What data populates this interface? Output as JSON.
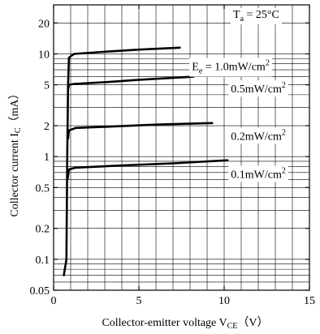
{
  "chart_data": {
    "type": "line",
    "title": "",
    "xlabel": "Collector-emitter voltage V",
    "xlabel_sub": "CE",
    "xlabel_unit": "（V）",
    "ylabel": "Collector current I",
    "ylabel_sub": "C",
    "ylabel_unit": "（mA）",
    "x_scale": "linear",
    "y_scale": "log",
    "xlim": [
      0,
      15
    ],
    "ylim": [
      0.05,
      30
    ],
    "x_ticks": [
      {
        "value": 0,
        "label": "0"
      },
      {
        "value": 5,
        "label": "5"
      },
      {
        "value": 10,
        "label": "10"
      },
      {
        "value": 15,
        "label": "15"
      }
    ],
    "y_ticks": [
      {
        "value": 0.05,
        "label": "0.05"
      },
      {
        "value": 0.1,
        "label": "0.1"
      },
      {
        "value": 0.2,
        "label": "0.2"
      },
      {
        "value": 0.5,
        "label": "0.5"
      },
      {
        "value": 1,
        "label": "1"
      },
      {
        "value": 2,
        "label": "2"
      },
      {
        "value": 5,
        "label": "5"
      },
      {
        "value": 10,
        "label": "10"
      },
      {
        "value": 20,
        "label": "20"
      }
    ],
    "grid": true,
    "annotation": {
      "text": "T",
      "sub": "a",
      "rest": " = 25°C",
      "placement": "top-right"
    },
    "series": [
      {
        "name": "1.0mW/cm2",
        "label_prefix": "E",
        "label_sub": "e",
        "label_mid": " = 1.0mW/cm",
        "label_sup": "2",
        "label_x": 10.3,
        "label_y": 7.6,
        "points": [
          [
            0.6,
            0.07
          ],
          [
            0.75,
            0.1
          ],
          [
            0.8,
            1
          ],
          [
            0.85,
            5
          ],
          [
            0.9,
            9.2
          ],
          [
            1.2,
            10
          ],
          [
            3,
            10.5
          ],
          [
            5,
            11
          ],
          [
            7.4,
            11.5
          ]
        ]
      },
      {
        "name": "0.5mW/cm2",
        "label_prefix": "",
        "label_sub": "",
        "label_mid": "0.5mW/cm",
        "label_sup": "2",
        "label_x": 10.3,
        "label_y": 4.6,
        "points": [
          [
            0.85,
            4.5
          ],
          [
            0.9,
            5.0
          ],
          [
            1.2,
            5.1
          ],
          [
            3,
            5.3
          ],
          [
            5,
            5.6
          ],
          [
            8.2,
            6.0
          ]
        ]
      },
      {
        "name": "0.2mW/cm2",
        "label_prefix": "",
        "label_sub": "",
        "label_mid": "0.2mW/cm",
        "label_sup": "2",
        "label_x": 10.3,
        "label_y": 1.6,
        "points": [
          [
            0.85,
            1.5
          ],
          [
            0.9,
            1.8
          ],
          [
            1.3,
            1.9
          ],
          [
            3,
            1.95
          ],
          [
            6,
            2.05
          ],
          [
            9.3,
            2.12
          ]
        ]
      },
      {
        "name": "0.1mW/cm2",
        "label_prefix": "",
        "label_sub": "",
        "label_mid": "0.1mW/cm",
        "label_sup": "2",
        "label_x": 10.3,
        "label_y": 0.68,
        "points": [
          [
            0.82,
            0.6
          ],
          [
            0.9,
            0.75
          ],
          [
            1.3,
            0.78
          ],
          [
            4,
            0.82
          ],
          [
            7,
            0.86
          ],
          [
            10.2,
            0.92
          ]
        ]
      }
    ]
  }
}
